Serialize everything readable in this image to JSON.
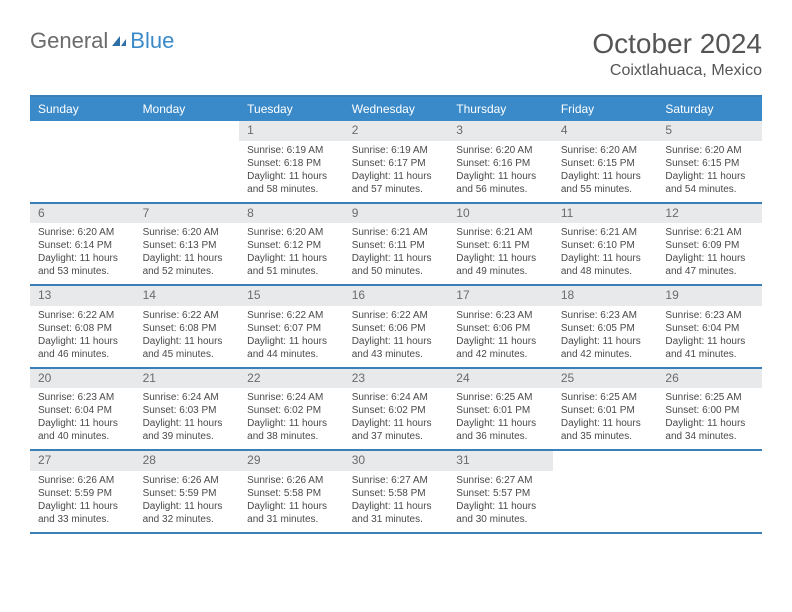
{
  "logo": {
    "general": "General",
    "blue": "Blue"
  },
  "title": "October 2024",
  "location": "Coixtlahuaca, Mexico",
  "colors": {
    "header_bg": "#3a8ac9",
    "header_border": "#3a7fb8",
    "daynum_bg": "#e7e9eb",
    "text": "#4a4a4a",
    "logo_gray": "#6b6b6b",
    "logo_blue": "#3a8ac9"
  },
  "day_names": [
    "Sunday",
    "Monday",
    "Tuesday",
    "Wednesday",
    "Thursday",
    "Friday",
    "Saturday"
  ],
  "weeks": [
    [
      {
        "n": "",
        "sr": "",
        "ss": "",
        "dl": ""
      },
      {
        "n": "",
        "sr": "",
        "ss": "",
        "dl": ""
      },
      {
        "n": "1",
        "sr": "Sunrise: 6:19 AM",
        "ss": "Sunset: 6:18 PM",
        "dl": "Daylight: 11 hours and 58 minutes."
      },
      {
        "n": "2",
        "sr": "Sunrise: 6:19 AM",
        "ss": "Sunset: 6:17 PM",
        "dl": "Daylight: 11 hours and 57 minutes."
      },
      {
        "n": "3",
        "sr": "Sunrise: 6:20 AM",
        "ss": "Sunset: 6:16 PM",
        "dl": "Daylight: 11 hours and 56 minutes."
      },
      {
        "n": "4",
        "sr": "Sunrise: 6:20 AM",
        "ss": "Sunset: 6:15 PM",
        "dl": "Daylight: 11 hours and 55 minutes."
      },
      {
        "n": "5",
        "sr": "Sunrise: 6:20 AM",
        "ss": "Sunset: 6:15 PM",
        "dl": "Daylight: 11 hours and 54 minutes."
      }
    ],
    [
      {
        "n": "6",
        "sr": "Sunrise: 6:20 AM",
        "ss": "Sunset: 6:14 PM",
        "dl": "Daylight: 11 hours and 53 minutes."
      },
      {
        "n": "7",
        "sr": "Sunrise: 6:20 AM",
        "ss": "Sunset: 6:13 PM",
        "dl": "Daylight: 11 hours and 52 minutes."
      },
      {
        "n": "8",
        "sr": "Sunrise: 6:20 AM",
        "ss": "Sunset: 6:12 PM",
        "dl": "Daylight: 11 hours and 51 minutes."
      },
      {
        "n": "9",
        "sr": "Sunrise: 6:21 AM",
        "ss": "Sunset: 6:11 PM",
        "dl": "Daylight: 11 hours and 50 minutes."
      },
      {
        "n": "10",
        "sr": "Sunrise: 6:21 AM",
        "ss": "Sunset: 6:11 PM",
        "dl": "Daylight: 11 hours and 49 minutes."
      },
      {
        "n": "11",
        "sr": "Sunrise: 6:21 AM",
        "ss": "Sunset: 6:10 PM",
        "dl": "Daylight: 11 hours and 48 minutes."
      },
      {
        "n": "12",
        "sr": "Sunrise: 6:21 AM",
        "ss": "Sunset: 6:09 PM",
        "dl": "Daylight: 11 hours and 47 minutes."
      }
    ],
    [
      {
        "n": "13",
        "sr": "Sunrise: 6:22 AM",
        "ss": "Sunset: 6:08 PM",
        "dl": "Daylight: 11 hours and 46 minutes."
      },
      {
        "n": "14",
        "sr": "Sunrise: 6:22 AM",
        "ss": "Sunset: 6:08 PM",
        "dl": "Daylight: 11 hours and 45 minutes."
      },
      {
        "n": "15",
        "sr": "Sunrise: 6:22 AM",
        "ss": "Sunset: 6:07 PM",
        "dl": "Daylight: 11 hours and 44 minutes."
      },
      {
        "n": "16",
        "sr": "Sunrise: 6:22 AM",
        "ss": "Sunset: 6:06 PM",
        "dl": "Daylight: 11 hours and 43 minutes."
      },
      {
        "n": "17",
        "sr": "Sunrise: 6:23 AM",
        "ss": "Sunset: 6:06 PM",
        "dl": "Daylight: 11 hours and 42 minutes."
      },
      {
        "n": "18",
        "sr": "Sunrise: 6:23 AM",
        "ss": "Sunset: 6:05 PM",
        "dl": "Daylight: 11 hours and 42 minutes."
      },
      {
        "n": "19",
        "sr": "Sunrise: 6:23 AM",
        "ss": "Sunset: 6:04 PM",
        "dl": "Daylight: 11 hours and 41 minutes."
      }
    ],
    [
      {
        "n": "20",
        "sr": "Sunrise: 6:23 AM",
        "ss": "Sunset: 6:04 PM",
        "dl": "Daylight: 11 hours and 40 minutes."
      },
      {
        "n": "21",
        "sr": "Sunrise: 6:24 AM",
        "ss": "Sunset: 6:03 PM",
        "dl": "Daylight: 11 hours and 39 minutes."
      },
      {
        "n": "22",
        "sr": "Sunrise: 6:24 AM",
        "ss": "Sunset: 6:02 PM",
        "dl": "Daylight: 11 hours and 38 minutes."
      },
      {
        "n": "23",
        "sr": "Sunrise: 6:24 AM",
        "ss": "Sunset: 6:02 PM",
        "dl": "Daylight: 11 hours and 37 minutes."
      },
      {
        "n": "24",
        "sr": "Sunrise: 6:25 AM",
        "ss": "Sunset: 6:01 PM",
        "dl": "Daylight: 11 hours and 36 minutes."
      },
      {
        "n": "25",
        "sr": "Sunrise: 6:25 AM",
        "ss": "Sunset: 6:01 PM",
        "dl": "Daylight: 11 hours and 35 minutes."
      },
      {
        "n": "26",
        "sr": "Sunrise: 6:25 AM",
        "ss": "Sunset: 6:00 PM",
        "dl": "Daylight: 11 hours and 34 minutes."
      }
    ],
    [
      {
        "n": "27",
        "sr": "Sunrise: 6:26 AM",
        "ss": "Sunset: 5:59 PM",
        "dl": "Daylight: 11 hours and 33 minutes."
      },
      {
        "n": "28",
        "sr": "Sunrise: 6:26 AM",
        "ss": "Sunset: 5:59 PM",
        "dl": "Daylight: 11 hours and 32 minutes."
      },
      {
        "n": "29",
        "sr": "Sunrise: 6:26 AM",
        "ss": "Sunset: 5:58 PM",
        "dl": "Daylight: 11 hours and 31 minutes."
      },
      {
        "n": "30",
        "sr": "Sunrise: 6:27 AM",
        "ss": "Sunset: 5:58 PM",
        "dl": "Daylight: 11 hours and 31 minutes."
      },
      {
        "n": "31",
        "sr": "Sunrise: 6:27 AM",
        "ss": "Sunset: 5:57 PM",
        "dl": "Daylight: 11 hours and 30 minutes."
      },
      {
        "n": "",
        "sr": "",
        "ss": "",
        "dl": ""
      },
      {
        "n": "",
        "sr": "",
        "ss": "",
        "dl": ""
      }
    ]
  ]
}
